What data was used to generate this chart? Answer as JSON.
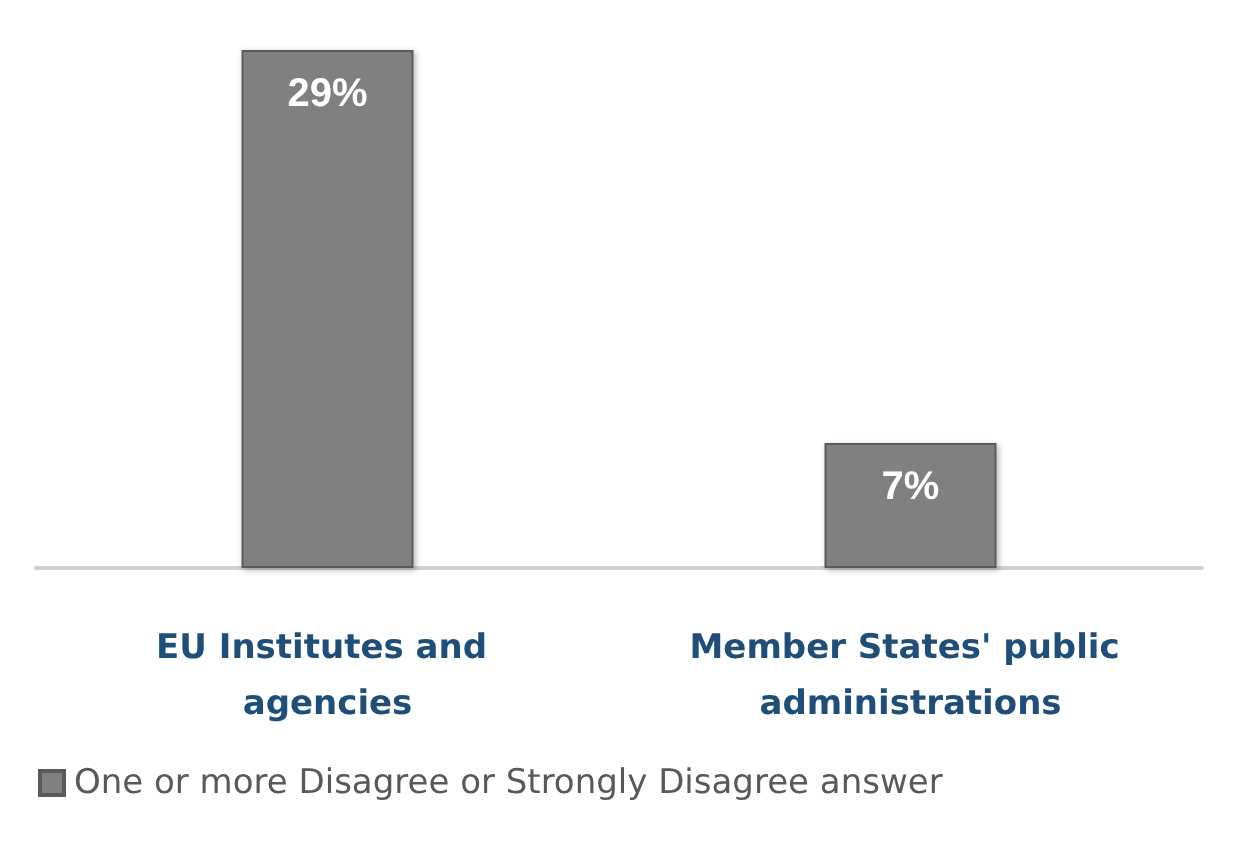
{
  "chart_data": {
    "type": "bar",
    "categories": [
      "EU Institutes and agencies",
      "Member States' public administrations"
    ],
    "series": [
      {
        "name": "One or more Disagree or Strongly Disagree answer",
        "color": "#808080",
        "values": [
          29,
          7
        ],
        "value_labels": [
          "29%",
          "7%"
        ]
      }
    ],
    "legend": "bottom left",
    "grid": false
  }
}
